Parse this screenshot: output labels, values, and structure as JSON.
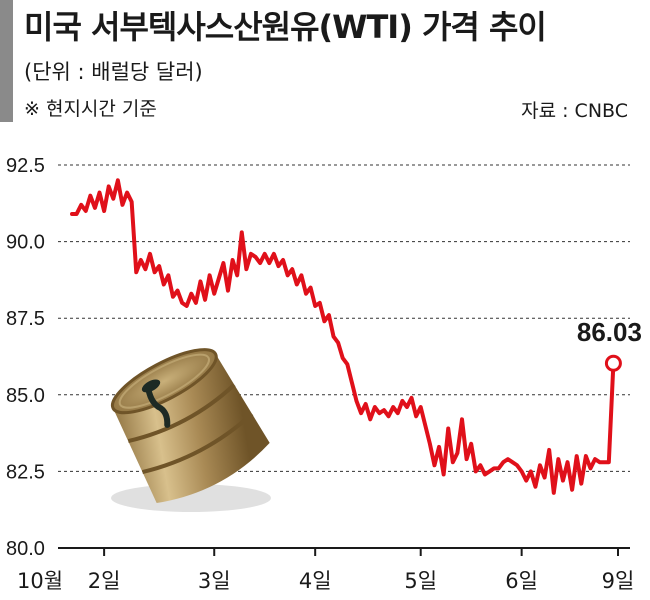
{
  "header": {
    "title": "미국 서부텍사스산원유(WTI) 가격 추이",
    "unit": "(단위 : 배럴당 달러)",
    "note": "※ 현지시간 기준",
    "source": "자료 :  CNBC"
  },
  "colors": {
    "line": "#e0101a",
    "grid": "#333333",
    "text": "#1a1a1a"
  },
  "illustration": {
    "icon": "oil-barrel-icon"
  },
  "chart_data": {
    "type": "line",
    "title": "미국 서부텍사스산원유(WTI) 가격 추이",
    "ylabel": "",
    "xlabel": "",
    "ylim": [
      80.0,
      92.5
    ],
    "yticks": [
      "80.0",
      "82.5",
      "85.0",
      "87.5",
      "90.0",
      "92.5"
    ],
    "grid": true,
    "x_ticks": [
      {
        "label": "10월",
        "x": 0
      },
      {
        "label": "2일",
        "x": 7
      },
      {
        "label": "3일",
        "x": 31
      },
      {
        "label": "4일",
        "x": 53
      },
      {
        "label": "5일",
        "x": 76
      },
      {
        "label": "6일",
        "x": 98
      },
      {
        "label": "9일",
        "x": 119
      }
    ],
    "series": [
      {
        "values": [
          90.9,
          90.9,
          91.2,
          91.0,
          91.5,
          91.1,
          91.6,
          91.0,
          91.8,
          91.4,
          92.0,
          91.2,
          91.6,
          91.3,
          89.0,
          89.4,
          89.1,
          89.6,
          89.0,
          89.2,
          88.6,
          88.9,
          88.2,
          88.4,
          88.0,
          87.9,
          88.3,
          88.0,
          88.7,
          88.1,
          88.9,
          88.3,
          88.8,
          89.3,
          88.4,
          89.4,
          88.9,
          90.3,
          89.1,
          89.6,
          89.5,
          89.3,
          89.6,
          89.3,
          89.6,
          89.2,
          89.4,
          88.9,
          89.1,
          88.6,
          88.9,
          88.3,
          88.5,
          87.9,
          88.0,
          87.4,
          87.6,
          86.9,
          86.7,
          86.2,
          86.0,
          85.4,
          84.8,
          84.4,
          84.7,
          84.2,
          84.6,
          84.4,
          84.5,
          84.3,
          84.6,
          84.4,
          84.8,
          84.6,
          84.9,
          84.3,
          84.6,
          84.0,
          83.4,
          82.7,
          83.3,
          82.4,
          83.9,
          82.8,
          83.1,
          84.2,
          82.9,
          83.4,
          82.5,
          82.7,
          82.4,
          82.5,
          82.6,
          82.6,
          82.8,
          82.9,
          82.8,
          82.7,
          82.5,
          82.2,
          82.5,
          82.0,
          82.7,
          82.3,
          83.2,
          81.8,
          82.9,
          82.2,
          82.8,
          81.9,
          83.0,
          82.1,
          83.0,
          82.6,
          82.9,
          82.8,
          82.8,
          82.8,
          86.03
        ]
      }
    ],
    "last_value_label": "86.03"
  }
}
